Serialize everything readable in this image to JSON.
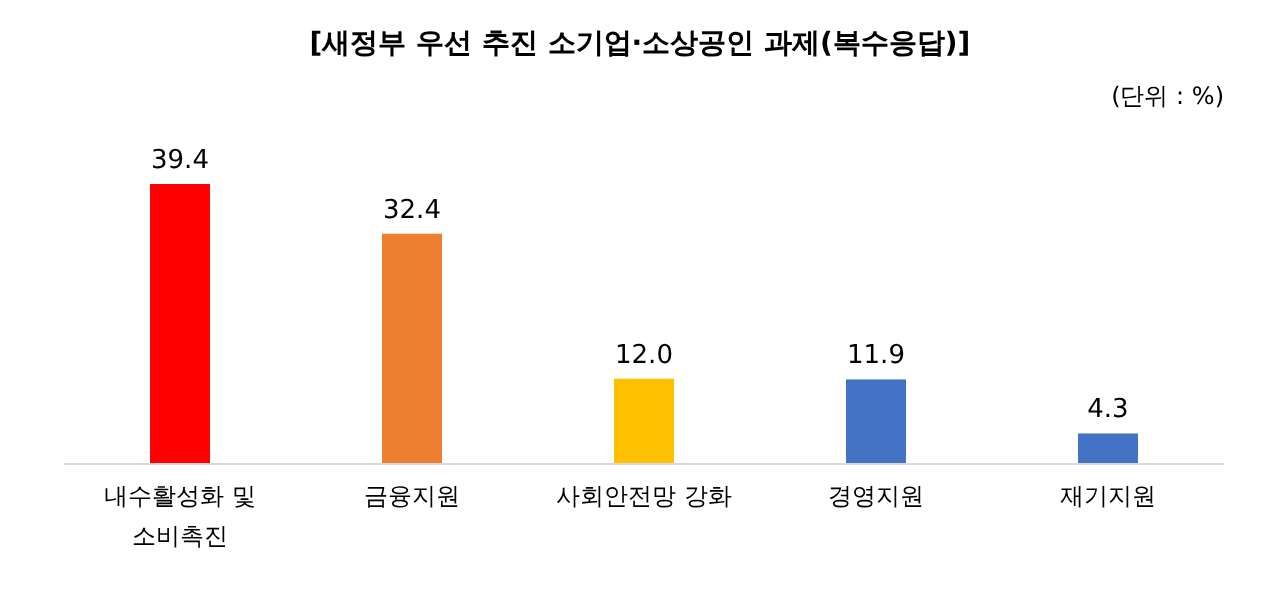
{
  "chart_data": {
    "type": "bar",
    "title": "[새정부 우선 추진 소기업·소상공인 과제(복수응답)]",
    "annotations": [
      "(단위 : %)"
    ],
    "categories": [
      "내수활성화 및 소비촉진",
      "금융지원",
      "사회안전망 강화",
      "경영지원",
      "재기지원"
    ],
    "values": [
      39.4,
      32.4,
      12.0,
      11.9,
      4.3
    ],
    "value_labels": [
      "39.4",
      "32.4",
      "12.0",
      "11.9",
      "4.3"
    ],
    "colors": [
      "#ff0000",
      "#ed7d31",
      "#ffc000",
      "#4472c4",
      "#4472c4"
    ]
  }
}
